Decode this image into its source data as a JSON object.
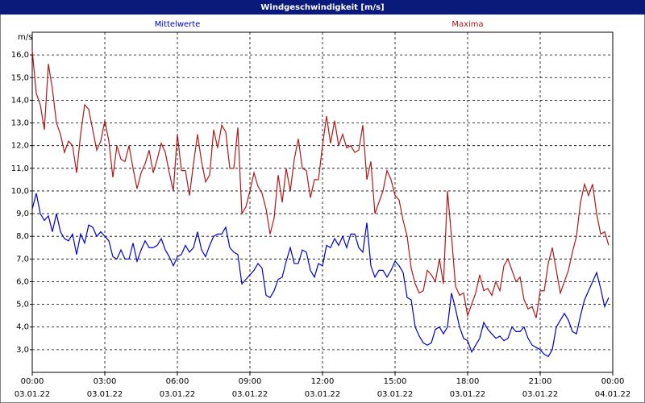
{
  "chart_data": {
    "type": "line",
    "title": "Windgeschwindigkeit [m/s]",
    "ylabel": "m/s",
    "x": [
      0,
      10,
      20,
      30,
      40,
      50,
      60,
      70,
      80,
      90,
      100,
      110,
      120,
      130,
      140,
      150,
      160,
      170,
      180,
      190,
      200,
      210,
      220,
      230,
      240,
      250,
      260,
      270,
      280,
      290,
      300,
      310,
      320,
      330,
      340,
      350,
      360,
      370,
      380,
      390,
      400,
      410,
      420,
      430,
      440,
      450,
      460,
      470,
      480,
      490,
      500,
      510,
      520,
      530,
      540,
      550,
      560,
      570,
      580,
      590,
      600,
      610,
      620,
      630,
      640,
      650,
      660,
      670,
      680,
      690,
      700,
      710,
      720,
      730,
      740,
      750,
      760,
      770,
      780,
      790,
      800,
      810,
      820,
      830,
      840,
      850,
      860,
      870,
      880,
      890,
      900,
      910,
      920,
      930,
      940,
      950,
      960,
      970,
      980,
      990,
      1000,
      1010,
      1020,
      1030,
      1040,
      1050,
      1060,
      1070,
      1080,
      1090,
      1100,
      1110,
      1120,
      1130,
      1140,
      1150,
      1160,
      1170,
      1180,
      1190,
      1200,
      1210,
      1220,
      1230,
      1240,
      1250,
      1260,
      1270,
      1280,
      1290,
      1300,
      1310,
      1320,
      1330,
      1340,
      1350,
      1360,
      1370,
      1380,
      1390,
      1400,
      1410,
      1420,
      1430
    ],
    "xlim": [
      0,
      1440
    ],
    "xticks": [
      {
        "value": 0,
        "label": "00:00"
      },
      {
        "value": 180,
        "label": "03:00"
      },
      {
        "value": 360,
        "label": "06:00"
      },
      {
        "value": 540,
        "label": "09:00"
      },
      {
        "value": 720,
        "label": "12:00"
      },
      {
        "value": 900,
        "label": "15:00"
      },
      {
        "value": 1080,
        "label": "18:00"
      },
      {
        "value": 1260,
        "label": "21:00"
      },
      {
        "value": 1440,
        "label": "00:00"
      }
    ],
    "xtick_dates": [
      "03.01.22",
      "03.01.22",
      "03.01.22",
      "03.01.22",
      "03.01.22",
      "03.01.22",
      "03.01.22",
      "03.01.22",
      "04.01.22"
    ],
    "ylim": [
      2,
      17
    ],
    "yticks": [
      {
        "value": 3,
        "label": "3,0"
      },
      {
        "value": 4,
        "label": "4,0"
      },
      {
        "value": 5,
        "label": "5,0"
      },
      {
        "value": 6,
        "label": "6,0"
      },
      {
        "value": 7,
        "label": "7,0"
      },
      {
        "value": 8,
        "label": "8,0"
      },
      {
        "value": 9,
        "label": "9,0"
      },
      {
        "value": 10,
        "label": "10,0"
      },
      {
        "value": 11,
        "label": "11,0"
      },
      {
        "value": 12,
        "label": "12,0"
      },
      {
        "value": 13,
        "label": "13,0"
      },
      {
        "value": 14,
        "label": "14,0"
      },
      {
        "value": 15,
        "label": "15,0"
      },
      {
        "value": 16,
        "label": "16,0"
      }
    ],
    "grid": true,
    "legend": "top",
    "series": [
      {
        "name": "Mittelwerte",
        "color": "#0000cc",
        "values": [
          9.2,
          9.9,
          9.0,
          8.7,
          8.9,
          8.2,
          9.0,
          8.2,
          7.9,
          7.8,
          8.1,
          7.2,
          8.1,
          7.7,
          8.5,
          8.4,
          8.0,
          8.2,
          8.0,
          7.8,
          7.1,
          7.0,
          7.4,
          7.0,
          7.0,
          7.7,
          6.9,
          7.4,
          7.8,
          7.5,
          7.5,
          7.6,
          7.9,
          7.4,
          7.1,
          6.7,
          7.1,
          7.2,
          7.6,
          7.3,
          7.5,
          8.2,
          7.4,
          7.1,
          7.6,
          8.0,
          8.1,
          8.1,
          8.4,
          7.5,
          7.3,
          7.2,
          5.9,
          6.1,
          6.3,
          6.5,
          6.8,
          6.6,
          5.4,
          5.3,
          5.6,
          6.1,
          6.2,
          6.9,
          7.5,
          6.8,
          6.8,
          7.4,
          7.3,
          6.5,
          6.2,
          6.8,
          6.7,
          7.6,
          7.5,
          7.9,
          7.6,
          8.0,
          7.5,
          8.1,
          8.1,
          7.5,
          7.3,
          8.6,
          6.7,
          6.2,
          6.5,
          6.5,
          6.2,
          6.5,
          6.9,
          6.7,
          6.4,
          5.3,
          5.2,
          4.0,
          3.6,
          3.3,
          3.2,
          3.3,
          3.9,
          4.0,
          3.7,
          4.0,
          5.5,
          4.8,
          4.0,
          3.5,
          3.4,
          2.9,
          3.2,
          3.5,
          4.2,
          3.9,
          3.7,
          3.5,
          3.6,
          3.4,
          3.5,
          4.0,
          3.8,
          3.8,
          4.0,
          3.5,
          3.2,
          3.1,
          3.0,
          2.8,
          2.7,
          3.0,
          4.0,
          4.3,
          4.6,
          4.3,
          3.8,
          3.7,
          4.5,
          5.2,
          5.6,
          6.0,
          6.4,
          5.7,
          4.9,
          5.3
        ]
      },
      {
        "name": "Maxima",
        "color": "#b01818",
        "values": [
          16.2,
          14.3,
          13.8,
          12.7,
          15.6,
          14.5,
          13.0,
          12.5,
          11.7,
          12.2,
          12.0,
          10.8,
          12.5,
          13.8,
          13.6,
          12.7,
          11.8,
          12.2,
          13.1,
          12.2,
          10.6,
          12.0,
          11.4,
          11.3,
          12.0,
          11.0,
          10.1,
          10.8,
          11.2,
          11.8,
          10.8,
          11.4,
          12.1,
          11.7,
          10.8,
          10.0,
          12.5,
          10.9,
          10.9,
          9.8,
          11.2,
          12.5,
          11.3,
          10.4,
          10.7,
          12.7,
          11.9,
          12.9,
          12.6,
          11.0,
          11.0,
          12.8,
          9.0,
          9.3,
          10.0,
          10.8,
          10.2,
          9.9,
          9.2,
          8.1,
          8.8,
          10.7,
          9.5,
          11.0,
          10.0,
          11.4,
          12.3,
          11.0,
          10.9,
          9.7,
          10.5,
          10.5,
          12.0,
          13.3,
          12.1,
          13.1,
          12.0,
          12.5,
          11.9,
          12.0,
          11.7,
          11.8,
          12.9,
          10.5,
          11.3,
          9.0,
          9.5,
          10.0,
          10.9,
          10.5,
          9.8,
          9.6,
          8.7,
          8.0,
          6.6,
          5.9,
          5.5,
          5.6,
          6.5,
          6.3,
          6.0,
          7.0,
          5.9,
          10.0,
          8.0,
          5.8,
          5.4,
          5.5,
          4.5,
          5.0,
          5.5,
          6.3,
          5.6,
          5.7,
          5.4,
          6.0,
          5.6,
          6.7,
          7.0,
          6.5,
          6.0,
          6.2,
          5.2,
          4.8,
          4.9,
          4.4,
          5.6,
          5.6,
          6.8,
          7.5,
          6.5,
          5.5,
          6.0,
          6.5,
          7.3,
          8.0,
          9.5,
          10.3,
          9.8,
          10.3,
          9.0,
          8.1,
          8.2,
          7.6
        ]
      }
    ]
  }
}
